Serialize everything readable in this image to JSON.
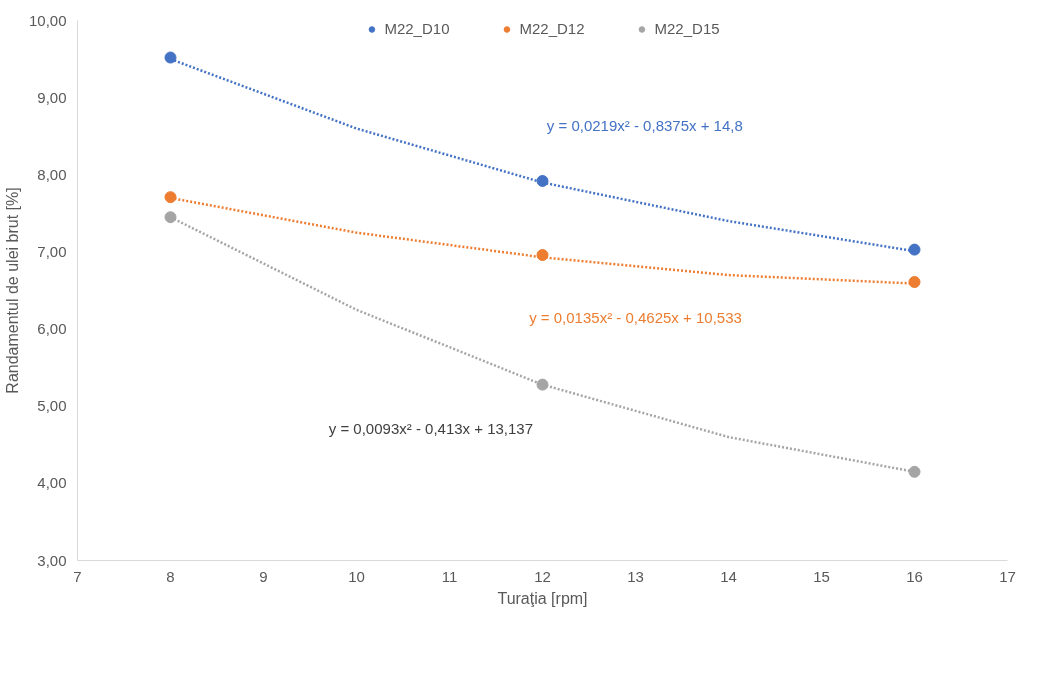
{
  "chart_data": {
    "type": "scatter",
    "xlabel": "Turaţia [rpm]",
    "ylabel": "Randamentul de ulei brut [%]",
    "xlim": [
      7,
      17
    ],
    "xticks": [
      7,
      8,
      9,
      10,
      11,
      12,
      13,
      14,
      15,
      16,
      17
    ],
    "ylim": [
      3,
      10
    ],
    "yticks": [
      {
        "value": 3,
        "label": "3,00"
      },
      {
        "value": 4,
        "label": "4,00"
      },
      {
        "value": 5,
        "label": "5,00"
      },
      {
        "value": 6,
        "label": "6,00"
      },
      {
        "value": 7,
        "label": "7,00"
      },
      {
        "value": 8,
        "label": "8,00"
      },
      {
        "value": 9,
        "label": "9,00"
      },
      {
        "value": 10,
        "label": "10,00"
      }
    ],
    "grid": false,
    "legend": "top",
    "marker": "circle",
    "x": [
      8,
      12,
      16
    ],
    "series": [
      {
        "name": "M22_D10",
        "color": "#4472c4",
        "values": [
          9.52,
          7.92,
          7.03
        ]
      },
      {
        "name": "M22_D12",
        "color": "#ed7d31",
        "values": [
          7.71,
          6.96,
          6.61
        ]
      },
      {
        "name": "M22_D15",
        "color": "#a5a5a5",
        "values": [
          7.45,
          5.28,
          4.15
        ]
      },
      {
        "type": "line",
        "color": "#4472c4",
        "line_style": "dotted",
        "marker": "none",
        "x": [
          8,
          10,
          12,
          14,
          16
        ],
        "values": [
          9.5,
          8.6,
          7.9,
          7.4,
          7.01
        ]
      },
      {
        "type": "line",
        "color": "#ed7d31",
        "line_style": "dotted",
        "marker": "none",
        "x": [
          8,
          10,
          12,
          14,
          16
        ],
        "values": [
          7.7,
          7.25,
          6.93,
          6.7,
          6.59
        ]
      },
      {
        "type": "line",
        "color": "#a5a5a5",
        "line_style": "dotted",
        "marker": "none",
        "x": [
          8,
          10,
          12,
          14,
          16
        ],
        "values": [
          7.45,
          6.25,
          5.28,
          4.6,
          4.15
        ]
      }
    ],
    "annotations": [
      "y = 0,0219x² - 0,8375x + 14,8",
      "y = 0,0135x² - 0,4625x + 10,533",
      "y = 0,0093x² - 0,413x + 13,137"
    ]
  }
}
